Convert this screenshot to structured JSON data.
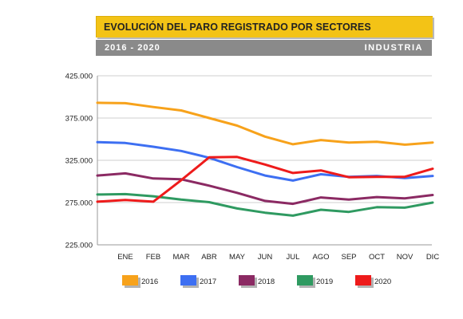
{
  "header": {
    "title": "EVOLUCIÓN DEL PARO REGISTRADO POR SECTORES",
    "period": "2016 - 2020",
    "sector": "INDUSTRIA"
  },
  "chart_data": {
    "type": "line",
    "title": "EVOLUCIÓN DEL PARO REGISTRADO POR SECTORES",
    "subtitle": "INDUSTRIA",
    "categories": [
      "ENE",
      "FEB",
      "MAR",
      "ABR",
      "MAY",
      "JUN",
      "JUL",
      "AGO",
      "SEP",
      "OCT",
      "NOV",
      "DIC"
    ],
    "x_start_label": "",
    "ylim": [
      225000,
      425000
    ],
    "yticks": [
      225000,
      275000,
      325000,
      375000,
      425000
    ],
    "ytick_labels": [
      "225.000",
      "275.000",
      "325.000",
      "375.000",
      "425.000"
    ],
    "grid": true,
    "legend_position": "bottom",
    "series": [
      {
        "name": "2016",
        "color": "#f7a21b",
        "start": 393000,
        "values": [
          392500,
          388000,
          384000,
          375000,
          366000,
          353000,
          344000,
          349000,
          346000,
          347000,
          343500,
          346000
        ]
      },
      {
        "name": "2017",
        "color": "#3d6ff2",
        "start": 346500,
        "values": [
          345500,
          341000,
          336000,
          328000,
          317000,
          307000,
          301000,
          308500,
          305500,
          306500,
          304000,
          306500
        ]
      },
      {
        "name": "2018",
        "color": "#8b2a63",
        "start": 307000,
        "values": [
          309500,
          303500,
          302500,
          295000,
          286500,
          277000,
          273500,
          281000,
          278500,
          281500,
          280000,
          284000
        ]
      },
      {
        "name": "2019",
        "color": "#2f9a61",
        "start": 284500,
        "values": [
          285000,
          282500,
          278500,
          275500,
          268000,
          263000,
          259500,
          266500,
          264000,
          269500,
          269000,
          275000
        ]
      },
      {
        "name": "2020",
        "color": "#ee1b1b",
        "start": 276000,
        "values": [
          278000,
          276000,
          301500,
          328500,
          329000,
          320000,
          310000,
          313000,
          305000,
          305500,
          305500,
          315000
        ]
      }
    ]
  }
}
